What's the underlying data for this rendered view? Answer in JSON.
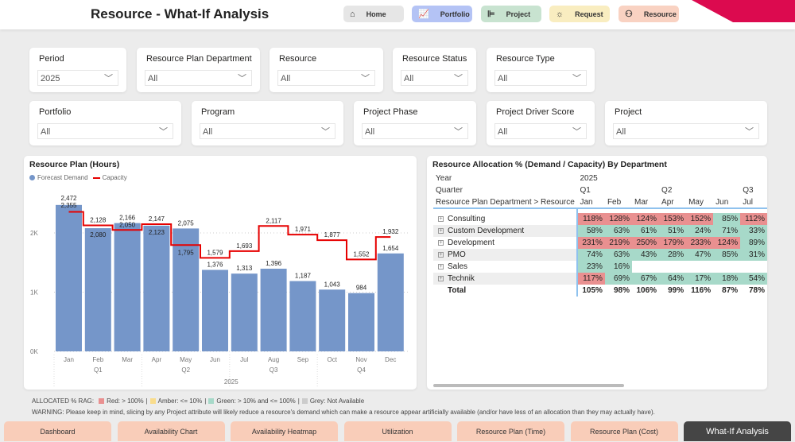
{
  "header": {
    "title": "Resource - What-If Analysis",
    "nav": [
      {
        "label": "Home",
        "icon": "home-icon",
        "color": "#e6e6e6"
      },
      {
        "label": "Portfolio",
        "icon": "portfolio-chart-icon",
        "color": "#b4c3f5"
      },
      {
        "label": "Project",
        "icon": "gantt-icon",
        "color": "#c8e3d0"
      },
      {
        "label": "Request",
        "icon": "lightbulb-icon",
        "color": "#f9edc0"
      },
      {
        "label": "Resource",
        "icon": "people-icon",
        "color": "#f9d2c2"
      }
    ]
  },
  "filters": [
    {
      "label": "Period",
      "value": "2025"
    },
    {
      "label": "Resource Plan Department",
      "value": "All"
    },
    {
      "label": "Resource",
      "value": "All"
    },
    {
      "label": "Resource Status",
      "value": "All"
    },
    {
      "label": "Resource Type",
      "value": "All"
    },
    {
      "label": "Portfolio",
      "value": "All"
    },
    {
      "label": "Program",
      "value": "All"
    },
    {
      "label": "Project Phase",
      "value": "All"
    },
    {
      "label": "Project Driver Score",
      "value": "All"
    },
    {
      "label": "Project",
      "value": "All"
    }
  ],
  "chart_data": {
    "type": "bar",
    "title": "Resource Plan (Hours)",
    "categories": [
      "Jan",
      "Feb",
      "Mar",
      "Apr",
      "May",
      "Jun",
      "Jul",
      "Aug",
      "Sep",
      "Oct",
      "Nov",
      "Dec"
    ],
    "quarters": [
      "Q1",
      "Q2",
      "Q3",
      "Q4"
    ],
    "year": "2025",
    "series": [
      {
        "name": "Forecast Demand",
        "type": "bar",
        "color": "#7596c9",
        "values": [
          2472,
          2080,
          2166,
          2123,
          2075,
          1376,
          1313,
          1396,
          1187,
          1043,
          984,
          1654
        ]
      },
      {
        "name": "Capacity",
        "type": "step-line",
        "color": "#e60000",
        "values": [
          2355,
          2128,
          2050,
          2147,
          1795,
          1579,
          1693,
          2117,
          1971,
          1877,
          1552,
          1932
        ]
      }
    ],
    "yticks": [
      "0K",
      "1K",
      "2K"
    ],
    "ylim": [
      0,
      2700
    ],
    "grid": true,
    "legend": "top-left"
  },
  "matrix": {
    "title": "Resource Allocation % (Demand / Capacity) By Department",
    "year_label": "Year",
    "year": "2025",
    "quarter_label": "Quarter",
    "row_header": "Resource Plan Department > Resource",
    "quarters": [
      "Q1",
      "",
      "",
      "Q2",
      "",
      "",
      "Q3"
    ],
    "months": [
      "Jan",
      "Feb",
      "Mar",
      "Apr",
      "May",
      "Jun",
      "Jul"
    ],
    "rows": [
      {
        "name": "Consulting",
        "values": [
          "118%",
          "128%",
          "124%",
          "153%",
          "152%",
          "85%",
          "112%"
        ]
      },
      {
        "name": "Custom Development",
        "values": [
          "58%",
          "63%",
          "61%",
          "51%",
          "24%",
          "71%",
          "33%"
        ]
      },
      {
        "name": "Development",
        "values": [
          "231%",
          "219%",
          "250%",
          "179%",
          "233%",
          "124%",
          "89%"
        ]
      },
      {
        "name": "PMO",
        "values": [
          "74%",
          "63%",
          "43%",
          "28%",
          "47%",
          "85%",
          "31%"
        ]
      },
      {
        "name": "Sales",
        "values": [
          "23%",
          "16%",
          "",
          "",
          "",
          "",
          ""
        ]
      },
      {
        "name": "Technik",
        "values": [
          "117%",
          "69%",
          "67%",
          "64%",
          "17%",
          "18%",
          "54%"
        ]
      }
    ],
    "total": {
      "name": "Total",
      "values": [
        "105%",
        "98%",
        "106%",
        "99%",
        "116%",
        "87%",
        "78%"
      ]
    },
    "colors": {
      "red": "#e99090",
      "green": "#a7d9c9"
    }
  },
  "footer": {
    "rag_label": "ALLOCATED % RAG:",
    "red": "Red: > 100%",
    "amber": "Amber: <= 10%",
    "green": "Green: > 10% and <= 100%",
    "grey": "Grey: Not Available",
    "sep": "|",
    "warning": "WARNING: Please keep in mind, slicing by any Project attribute will likely reduce a resource's demand which can make a resource appear artificially available (and/or have less of an allocation than they may actually have)."
  },
  "bottom_nav": [
    "Dashboard",
    "Availability Chart",
    "Availability Heatmap",
    "Utilization",
    "Resource Plan (Time)",
    "Resource Plan (Cost)",
    "What-If Analysis"
  ]
}
